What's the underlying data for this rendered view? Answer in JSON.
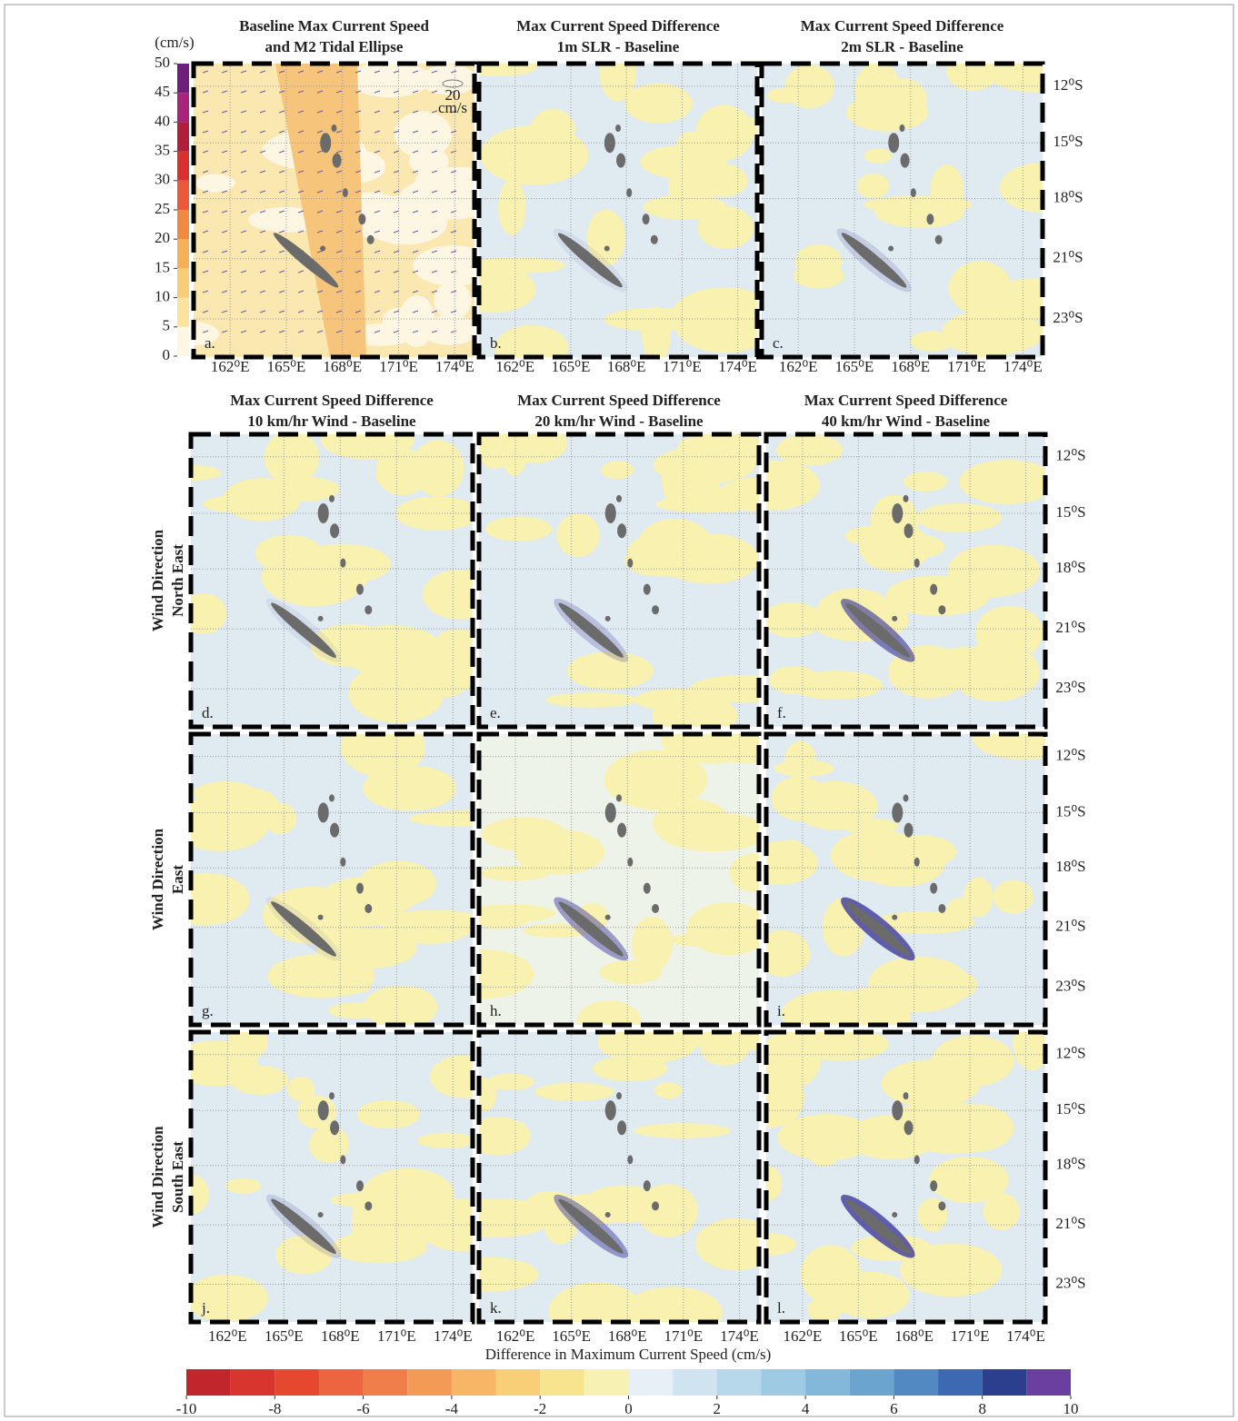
{
  "colorbar_top": {
    "unit": "(cm/s)",
    "ticks": [
      0,
      5,
      10,
      15,
      20,
      25,
      30,
      35,
      40,
      45,
      50
    ],
    "colors": [
      "#fdf6e3",
      "#fbe39f",
      "#f8cd77",
      "#f5b15a",
      "#f08a42",
      "#ea5a3a",
      "#d7302e",
      "#b11e3a",
      "#a8247a",
      "#6e1f7b"
    ]
  },
  "colorbar_bottom": {
    "title": "Difference in Maximum Current Speed (cm/s)",
    "ticks": [
      -10,
      -8,
      -6,
      -4,
      -2,
      0,
      2,
      4,
      6,
      8,
      10
    ],
    "colors": [
      "#c0262b",
      "#d9352f",
      "#e5482f",
      "#ec6440",
      "#f07e4b",
      "#f39a57",
      "#f6b665",
      "#f8cf76",
      "#f8e48e",
      "#f7f1b4",
      "#e6f0f6",
      "#cfe4f0",
      "#b7d8ea",
      "#9ecbe3",
      "#83b8da",
      "#6aa4cf",
      "#5289c3",
      "#3d69b2",
      "#2b3f8e",
      "#6a3fa0"
    ]
  },
  "ellipse_scale": {
    "value": "20",
    "unit": "cm/s"
  },
  "lon_labels": [
    "162⁰E",
    "165⁰E",
    "168⁰E",
    "171⁰E",
    "174⁰E"
  ],
  "lat_labels": [
    "12⁰S",
    "15⁰S",
    "18⁰S",
    "21⁰S",
    "23⁰S"
  ],
  "row_labels": [
    [
      "Wind Direction",
      "North East"
    ],
    [
      "Wind Direction",
      "East"
    ],
    [
      "Wind Direction",
      "South East"
    ]
  ],
  "panels": [
    {
      "title": [
        "Baseline Max Current Speed",
        "and  M2 Tidal Ellipse"
      ],
      "label": "a."
    },
    {
      "title": [
        "Max Current Speed Difference",
        "1m SLR - Baseline"
      ],
      "label": "b."
    },
    {
      "title": [
        "Max Current Speed Difference",
        "2m SLR - Baseline"
      ],
      "label": "c."
    },
    {
      "title": [
        "Max Current Speed Difference",
        "10 km/hr Wind - Baseline"
      ],
      "label": "d."
    },
    {
      "title": [
        "Max Current Speed Difference",
        "20 km/hr Wind - Baseline"
      ],
      "label": "e."
    },
    {
      "title": [
        "Max Current Speed Difference",
        "40 km/hr Wind - Baseline"
      ],
      "label": "f."
    },
    {
      "label": "g."
    },
    {
      "label": "h."
    },
    {
      "label": "i."
    },
    {
      "label": "j."
    },
    {
      "label": "k."
    },
    {
      "label": "l."
    }
  ]
}
